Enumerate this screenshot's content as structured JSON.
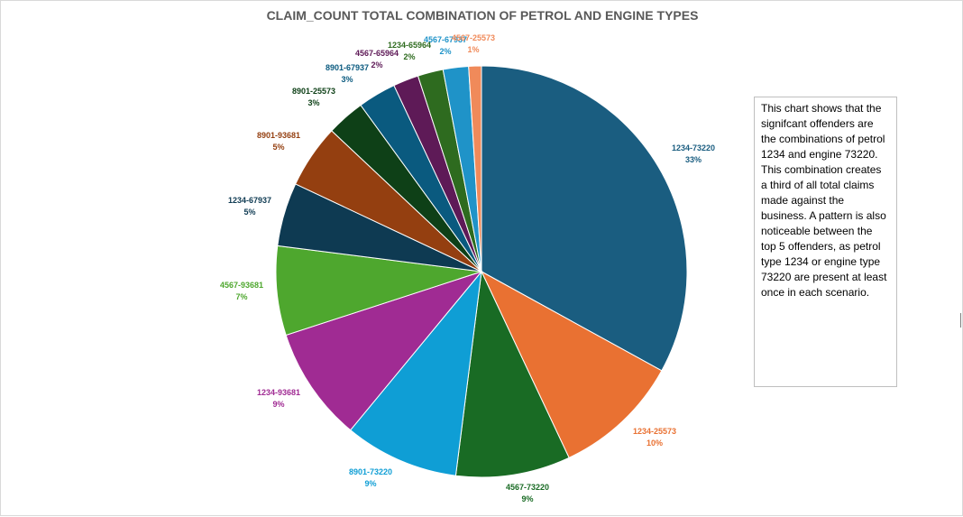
{
  "chart_data": {
    "type": "pie",
    "title": "CLAIM_COUNT TOTAL COMBINATION OF PETROL AND ENGINE TYPES",
    "slices": [
      {
        "label": "1234-73220",
        "value": 33,
        "pct_label": "33%",
        "color": "#1a5d80"
      },
      {
        "label": "1234-25573",
        "value": 10,
        "pct_label": "10%",
        "color": "#e97132"
      },
      {
        "label": "4567-73220",
        "value": 9,
        "pct_label": "9%",
        "color": "#196b24"
      },
      {
        "label": "8901-73220",
        "value": 9,
        "pct_label": "9%",
        "color": "#0f9ed5"
      },
      {
        "label": "1234-93681",
        "value": 9,
        "pct_label": "9%",
        "color": "#a02b93"
      },
      {
        "label": "4567-93681",
        "value": 7,
        "pct_label": "7%",
        "color": "#4ea72e"
      },
      {
        "label": "1234-67937",
        "value": 5,
        "pct_label": "5%",
        "color": "#0e3a52"
      },
      {
        "label": "8901-93681",
        "value": 5,
        "pct_label": "5%",
        "color": "#943f10"
      },
      {
        "label": "8901-25573",
        "value": 3,
        "pct_label": "3%",
        "color": "#0e4017"
      },
      {
        "label": "8901-67937",
        "value": 3,
        "pct_label": "3%",
        "color": "#0a5a7f"
      },
      {
        "label": "4567-65964",
        "value": 2,
        "pct_label": "2%",
        "color": "#5e1a57"
      },
      {
        "label": "1234-65964",
        "value": 2,
        "pct_label": "2%",
        "color": "#2e6b1f"
      },
      {
        "label": "4567-67937",
        "value": 2,
        "pct_label": "2%",
        "color": "#1f93c8"
      },
      {
        "label": "4567-25573",
        "value": 1,
        "pct_label": "1%",
        "color": "#f08a5a"
      }
    ]
  },
  "note": {
    "text": "This chart shows that the signifcant offenders are the combinations of petrol 1234 and engine 73220. This combination creates a third of all total claims made against the business. A pattern is also noticeable between the top 5 offenders, as petrol type 1234 or engine type 73220 are present at least once in each scenario."
  }
}
